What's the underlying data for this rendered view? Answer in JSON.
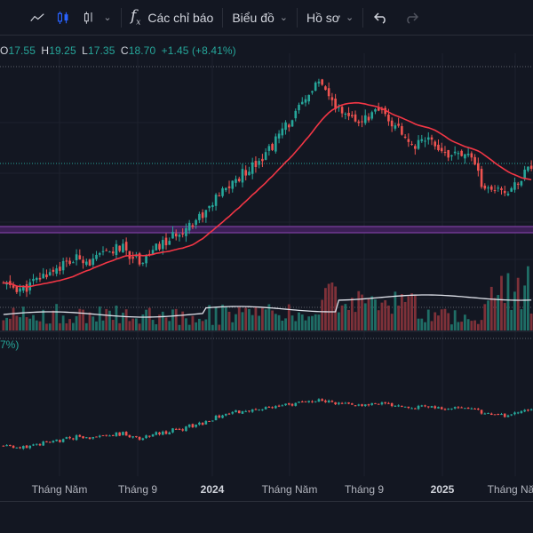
{
  "toolbar": {
    "indicators_label": "Các chỉ báo",
    "chart_label": "Biểu đồ",
    "profile_label": "Hồ sơ"
  },
  "legend": {
    "o_key": "O",
    "o_val": "17.55",
    "h_key": "H",
    "h_val": "19.25",
    "l_key": "L",
    "l_val": "17.35",
    "c_key": "C",
    "c_val": "18.70",
    "change": "+1.45 (+8.41%)"
  },
  "oscillator": {
    "legend_text": "7%)"
  },
  "xaxis": {
    "labels": [
      "Tháng Năm",
      "Tháng 9",
      "2024",
      "Tháng Năm",
      "Tháng 9",
      "2025",
      "Tháng Năm"
    ]
  },
  "colors": {
    "up": "#26a69a",
    "down": "#ef5350",
    "ma": "#f23645",
    "vol_ma": "#e0e3eb",
    "band": "#7b3fa0",
    "bg": "#131722"
  },
  "chart_data": {
    "type": "candlestick",
    "series": [
      {
        "name": "price",
        "description": "daily OHLC, last bar O 17.55 H 19.25 L 17.35 C 18.70"
      }
    ],
    "x_ticks": [
      "Tháng Năm",
      "Tháng 9",
      "2024",
      "Tháng Năm",
      "Tháng 9",
      "2025",
      "Tháng Năm"
    ],
    "close_path": [
      9.2,
      9.0,
      8.8,
      9.3,
      9.9,
      10.4,
      10.8,
      11.1,
      11.5,
      11.0,
      11.6,
      12.0,
      12.3,
      11.7,
      11.2,
      11.8,
      12.4,
      12.9,
      13.6,
      14.2,
      14.8,
      15.5,
      16.5,
      17.3,
      18.0,
      18.8,
      19.5,
      20.2,
      21.3,
      22.4,
      23.4,
      24.5,
      26.0,
      25.0,
      24.0,
      23.4,
      22.6,
      23.0,
      23.5,
      23.2,
      22.4,
      21.6,
      20.8,
      21.5,
      21.0,
      20.3,
      19.8,
      20.0,
      19.3,
      17.4,
      16.7,
      16.9,
      17.3,
      18.2,
      18.7
    ]
  }
}
